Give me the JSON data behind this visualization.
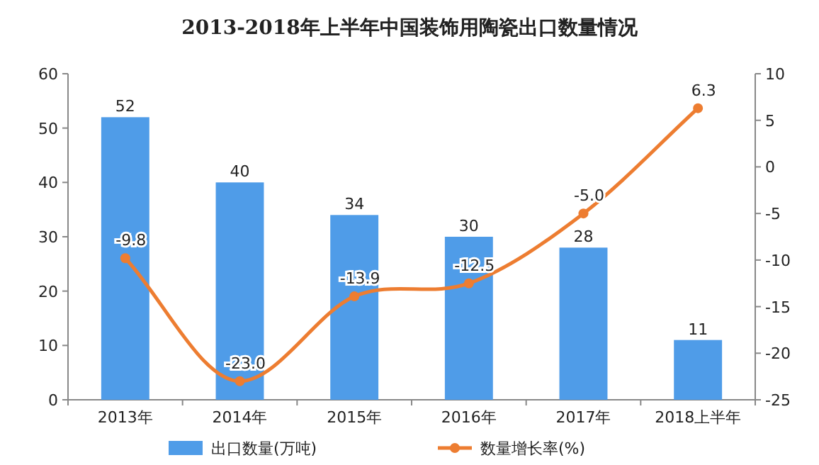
{
  "chart_data": {
    "type": "bar",
    "title": "2013-2018年上半年中国装饰用陶瓷出口数量情况",
    "categories": [
      "2013年",
      "2014年",
      "2015年",
      "2016年",
      "2017年",
      "2018上半年"
    ],
    "series": [
      {
        "name": "出口数量(万吨)",
        "color": "#4f9ce8",
        "values": [
          52,
          40,
          34,
          30,
          28,
          11
        ],
        "value_labels": [
          "52",
          "40",
          "34",
          "30",
          "28",
          "11"
        ]
      },
      {
        "name": "数量增长率(%)",
        "type": "line",
        "axis": "y2",
        "color": "#ed7d31",
        "marker": "circle",
        "values": [
          -9.8,
          -23.0,
          -13.9,
          -12.5,
          -5.0,
          6.3
        ],
        "value_labels": [
          "-9.8",
          "-23.0",
          "-13.9",
          "-12.5",
          "-5.0",
          "6.3"
        ]
      }
    ],
    "ylim": [
      0,
      60
    ],
    "yticks": [
      0,
      10,
      20,
      30,
      40,
      50,
      60
    ],
    "y2lim": [
      -25,
      10
    ],
    "y2ticks": [
      -25,
      -20,
      -15,
      -10,
      -5,
      0,
      5,
      10
    ],
    "legend": "bottom",
    "grid": false
  }
}
